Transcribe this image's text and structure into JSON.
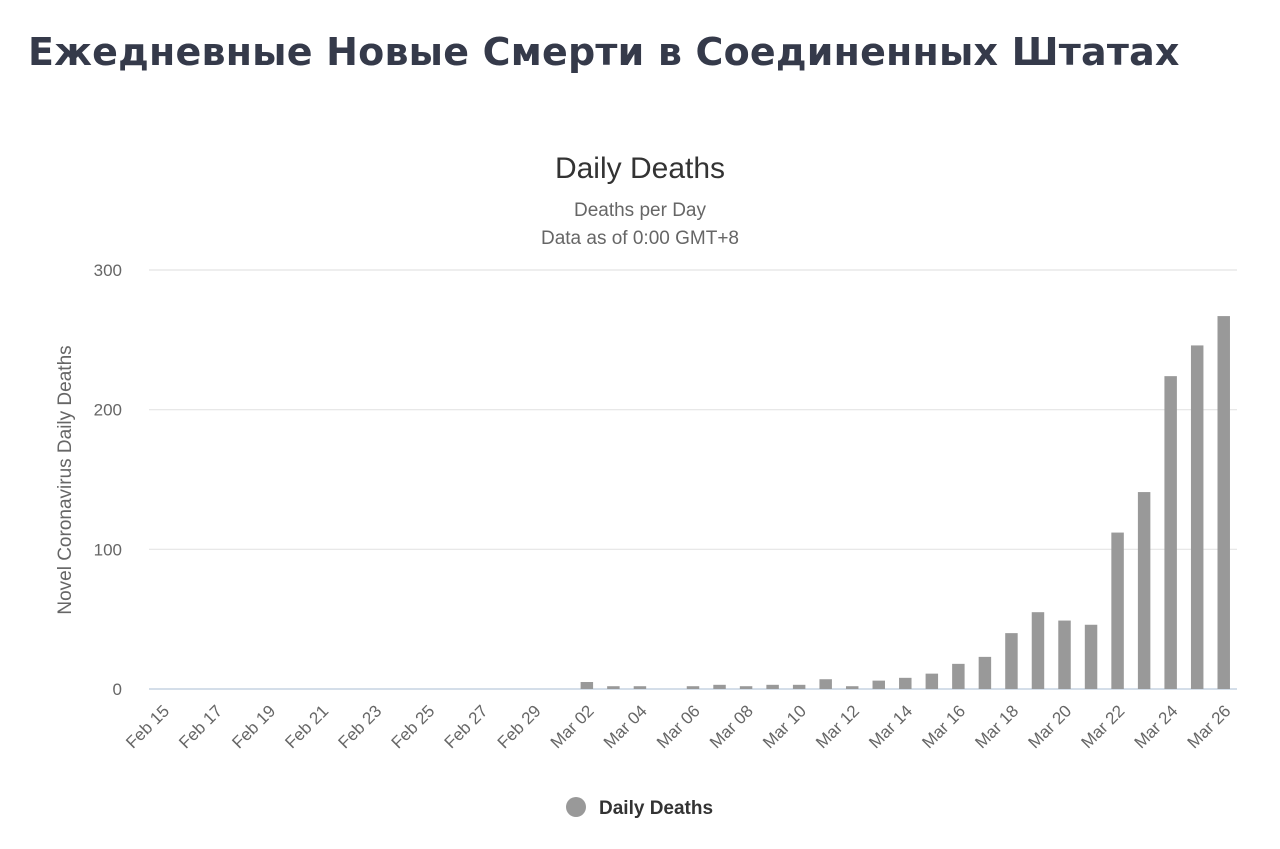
{
  "page": {
    "heading": "Ежедневные Новые Смерти в Соединенных Штатах"
  },
  "chart_data": {
    "type": "bar",
    "title": "Daily Deaths",
    "subtitle_lines": [
      "Deaths per Day",
      "Data as of 0:00 GMT+8"
    ],
    "xlabel": "",
    "ylabel": "Novel Coronavirus Daily Deaths",
    "ylim": [
      0,
      300
    ],
    "yticks": [
      0,
      100,
      200,
      300
    ],
    "grid": true,
    "legend_position": "bottom-center",
    "categories": [
      "Feb 15",
      "Feb 16",
      "Feb 17",
      "Feb 18",
      "Feb 19",
      "Feb 20",
      "Feb 21",
      "Feb 22",
      "Feb 23",
      "Feb 24",
      "Feb 25",
      "Feb 26",
      "Feb 27",
      "Feb 28",
      "Feb 29",
      "Mar 01",
      "Mar 02",
      "Mar 03",
      "Mar 04",
      "Mar 05",
      "Mar 06",
      "Mar 07",
      "Mar 08",
      "Mar 09",
      "Mar 10",
      "Mar 11",
      "Mar 12",
      "Mar 13",
      "Mar 14",
      "Mar 15",
      "Mar 16",
      "Mar 17",
      "Mar 18",
      "Mar 19",
      "Mar 20",
      "Mar 21",
      "Mar 22",
      "Mar 23",
      "Mar 24",
      "Mar 25",
      "Mar 26"
    ],
    "tick_labels": [
      "Feb 15",
      "Feb 17",
      "Feb 19",
      "Feb 21",
      "Feb 23",
      "Feb 25",
      "Feb 27",
      "Feb 29",
      "Mar 02",
      "Mar 04",
      "Mar 06",
      "Mar 08",
      "Mar 10",
      "Mar 12",
      "Mar 14",
      "Mar 16",
      "Mar 18",
      "Mar 20",
      "Mar 22",
      "Mar 24",
      "Mar 26"
    ],
    "series": [
      {
        "name": "Daily Deaths",
        "color": "#999999",
        "values": [
          0,
          0,
          0,
          0,
          0,
          0,
          0,
          0,
          0,
          0,
          0,
          0,
          0,
          0,
          0,
          0,
          5,
          2,
          2,
          0,
          2,
          3,
          2,
          3,
          3,
          7,
          2,
          6,
          8,
          11,
          18,
          23,
          40,
          55,
          49,
          46,
          112,
          141,
          224,
          246,
          267
        ]
      }
    ]
  }
}
